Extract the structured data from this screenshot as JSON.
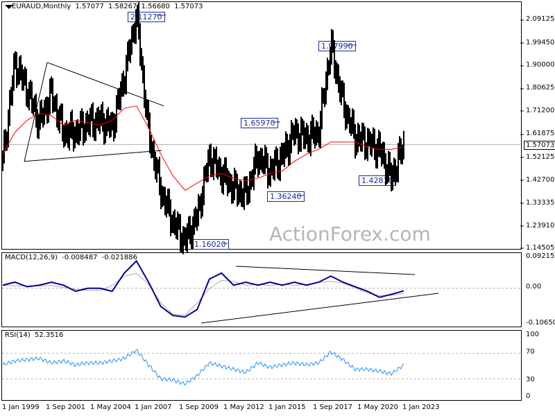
{
  "header": {
    "symbol": "EURAUD,Monthly",
    "ohlc": [
      "1.57077",
      "1.58267",
      "1.56680",
      "1.57073"
    ]
  },
  "watermark": "ActionForex.com",
  "colors": {
    "candle": "#000000",
    "ma": "#ff0000",
    "macd": "#00008b",
    "signal": "#a9a9a9",
    "rsi": "#1e90ff",
    "callout": "#1a2a9a"
  },
  "chart_data": [
    {
      "type": "candlestick",
      "title": "EURAUD,Monthly",
      "ylim": [
        1.14,
        2.14
      ],
      "yticks": [
        "2.09125",
        "1.99450",
        "1.90000",
        "1.80625",
        "1.71200",
        "1.61875",
        "1.52125",
        "1.42700",
        "1.33335",
        "1.23910",
        "1.14505"
      ],
      "last_price_label": "1.57073",
      "annotations": [
        "2.11270",
        "1.97990",
        "1.65970",
        "1.42810",
        "1.36240",
        "1.16020"
      ],
      "x": [
        "1999-01",
        "2000-07",
        "2001-09",
        "2002-09",
        "2003-09",
        "2004-05",
        "2005-06",
        "2006-06",
        "2007-01",
        "2008-01",
        "2008-06",
        "2008-12",
        "2009-09",
        "2010-06",
        "2011-06",
        "2012-05",
        "2012-12",
        "2013-06",
        "2014-03",
        "2015-01",
        "2015-09",
        "2016-06",
        "2017-03",
        "2017-09",
        "2018-06",
        "2019-03",
        "2019-09",
        "2020-03",
        "2020-05",
        "2020-12",
        "2021-06",
        "2022-01",
        "2022-06",
        "2023-01"
      ],
      "close": [
        1.5,
        1.91,
        1.8,
        1.66,
        1.78,
        1.62,
        1.62,
        1.66,
        1.67,
        1.64,
        1.85,
        2.11,
        1.62,
        1.38,
        1.25,
        1.17,
        1.27,
        1.52,
        1.45,
        1.39,
        1.36,
        1.52,
        1.46,
        1.52,
        1.62,
        1.6,
        1.62,
        1.98,
        1.74,
        1.6,
        1.58,
        1.55,
        1.43,
        1.57
      ],
      "series": [
        {
          "name": "",
          "values": [
            1.53,
            1.62,
            1.67,
            1.7,
            1.69,
            1.65,
            1.67,
            1.66,
            1.65,
            1.67,
            1.72,
            1.73,
            1.64,
            1.53,
            1.44,
            1.38,
            1.41,
            1.44,
            1.45,
            1.43,
            1.42,
            1.43,
            1.45,
            1.46,
            1.5,
            1.53,
            1.55,
            1.58,
            1.58,
            1.58,
            1.56,
            1.55,
            1.55,
            1.56
          ]
        }
      ],
      "xticks": [
        "1 Jan 1999",
        "1 Sep 2001",
        "1 May 2004",
        "1 Jan 2007",
        "1 Sep 2009",
        "1 May 2012",
        "1 Jan 2015",
        "1 Sep 2017",
        "1 May 2020",
        "1 Jan 2023"
      ]
    },
    {
      "type": "line",
      "title": "MACD(12,26,9)",
      "values_label": [
        "-0.008487",
        "-0.021886"
      ],
      "yticks": [
        "0.092158",
        "0.00",
        "-0.106503"
      ],
      "ylim": [
        -0.115,
        0.1
      ],
      "series": [
        {
          "name": "",
          "values": [
            0.01,
            0.02,
            0.005,
            0.01,
            0.02,
            0.01,
            -0.01,
            0.0,
            0.0,
            -0.01,
            0.05,
            0.09,
            0.02,
            -0.06,
            -0.09,
            -0.095,
            -0.07,
            0.03,
            0.05,
            0.01,
            0.02,
            0.01,
            0.02,
            0.01,
            0.02,
            0.01,
            0.02,
            0.04,
            0.02,
            0.005,
            -0.01,
            -0.03,
            -0.02,
            -0.008487
          ]
        }
      ]
    },
    {
      "type": "line",
      "title": "RSI(14)",
      "values_label": [
        "52.3516"
      ],
      "yticks": [
        "100",
        "70",
        "30",
        "0"
      ],
      "ylim": [
        0,
        100
      ],
      "series": [
        {
          "name": "",
          "values": [
            52,
            58,
            60,
            62,
            55,
            58,
            52,
            55,
            55,
            58,
            62,
            75,
            52,
            30,
            28,
            22,
            35,
            55,
            50,
            45,
            40,
            55,
            48,
            52,
            55,
            52,
            55,
            72,
            60,
            45,
            45,
            42,
            38,
            52
          ]
        }
      ]
    }
  ]
}
